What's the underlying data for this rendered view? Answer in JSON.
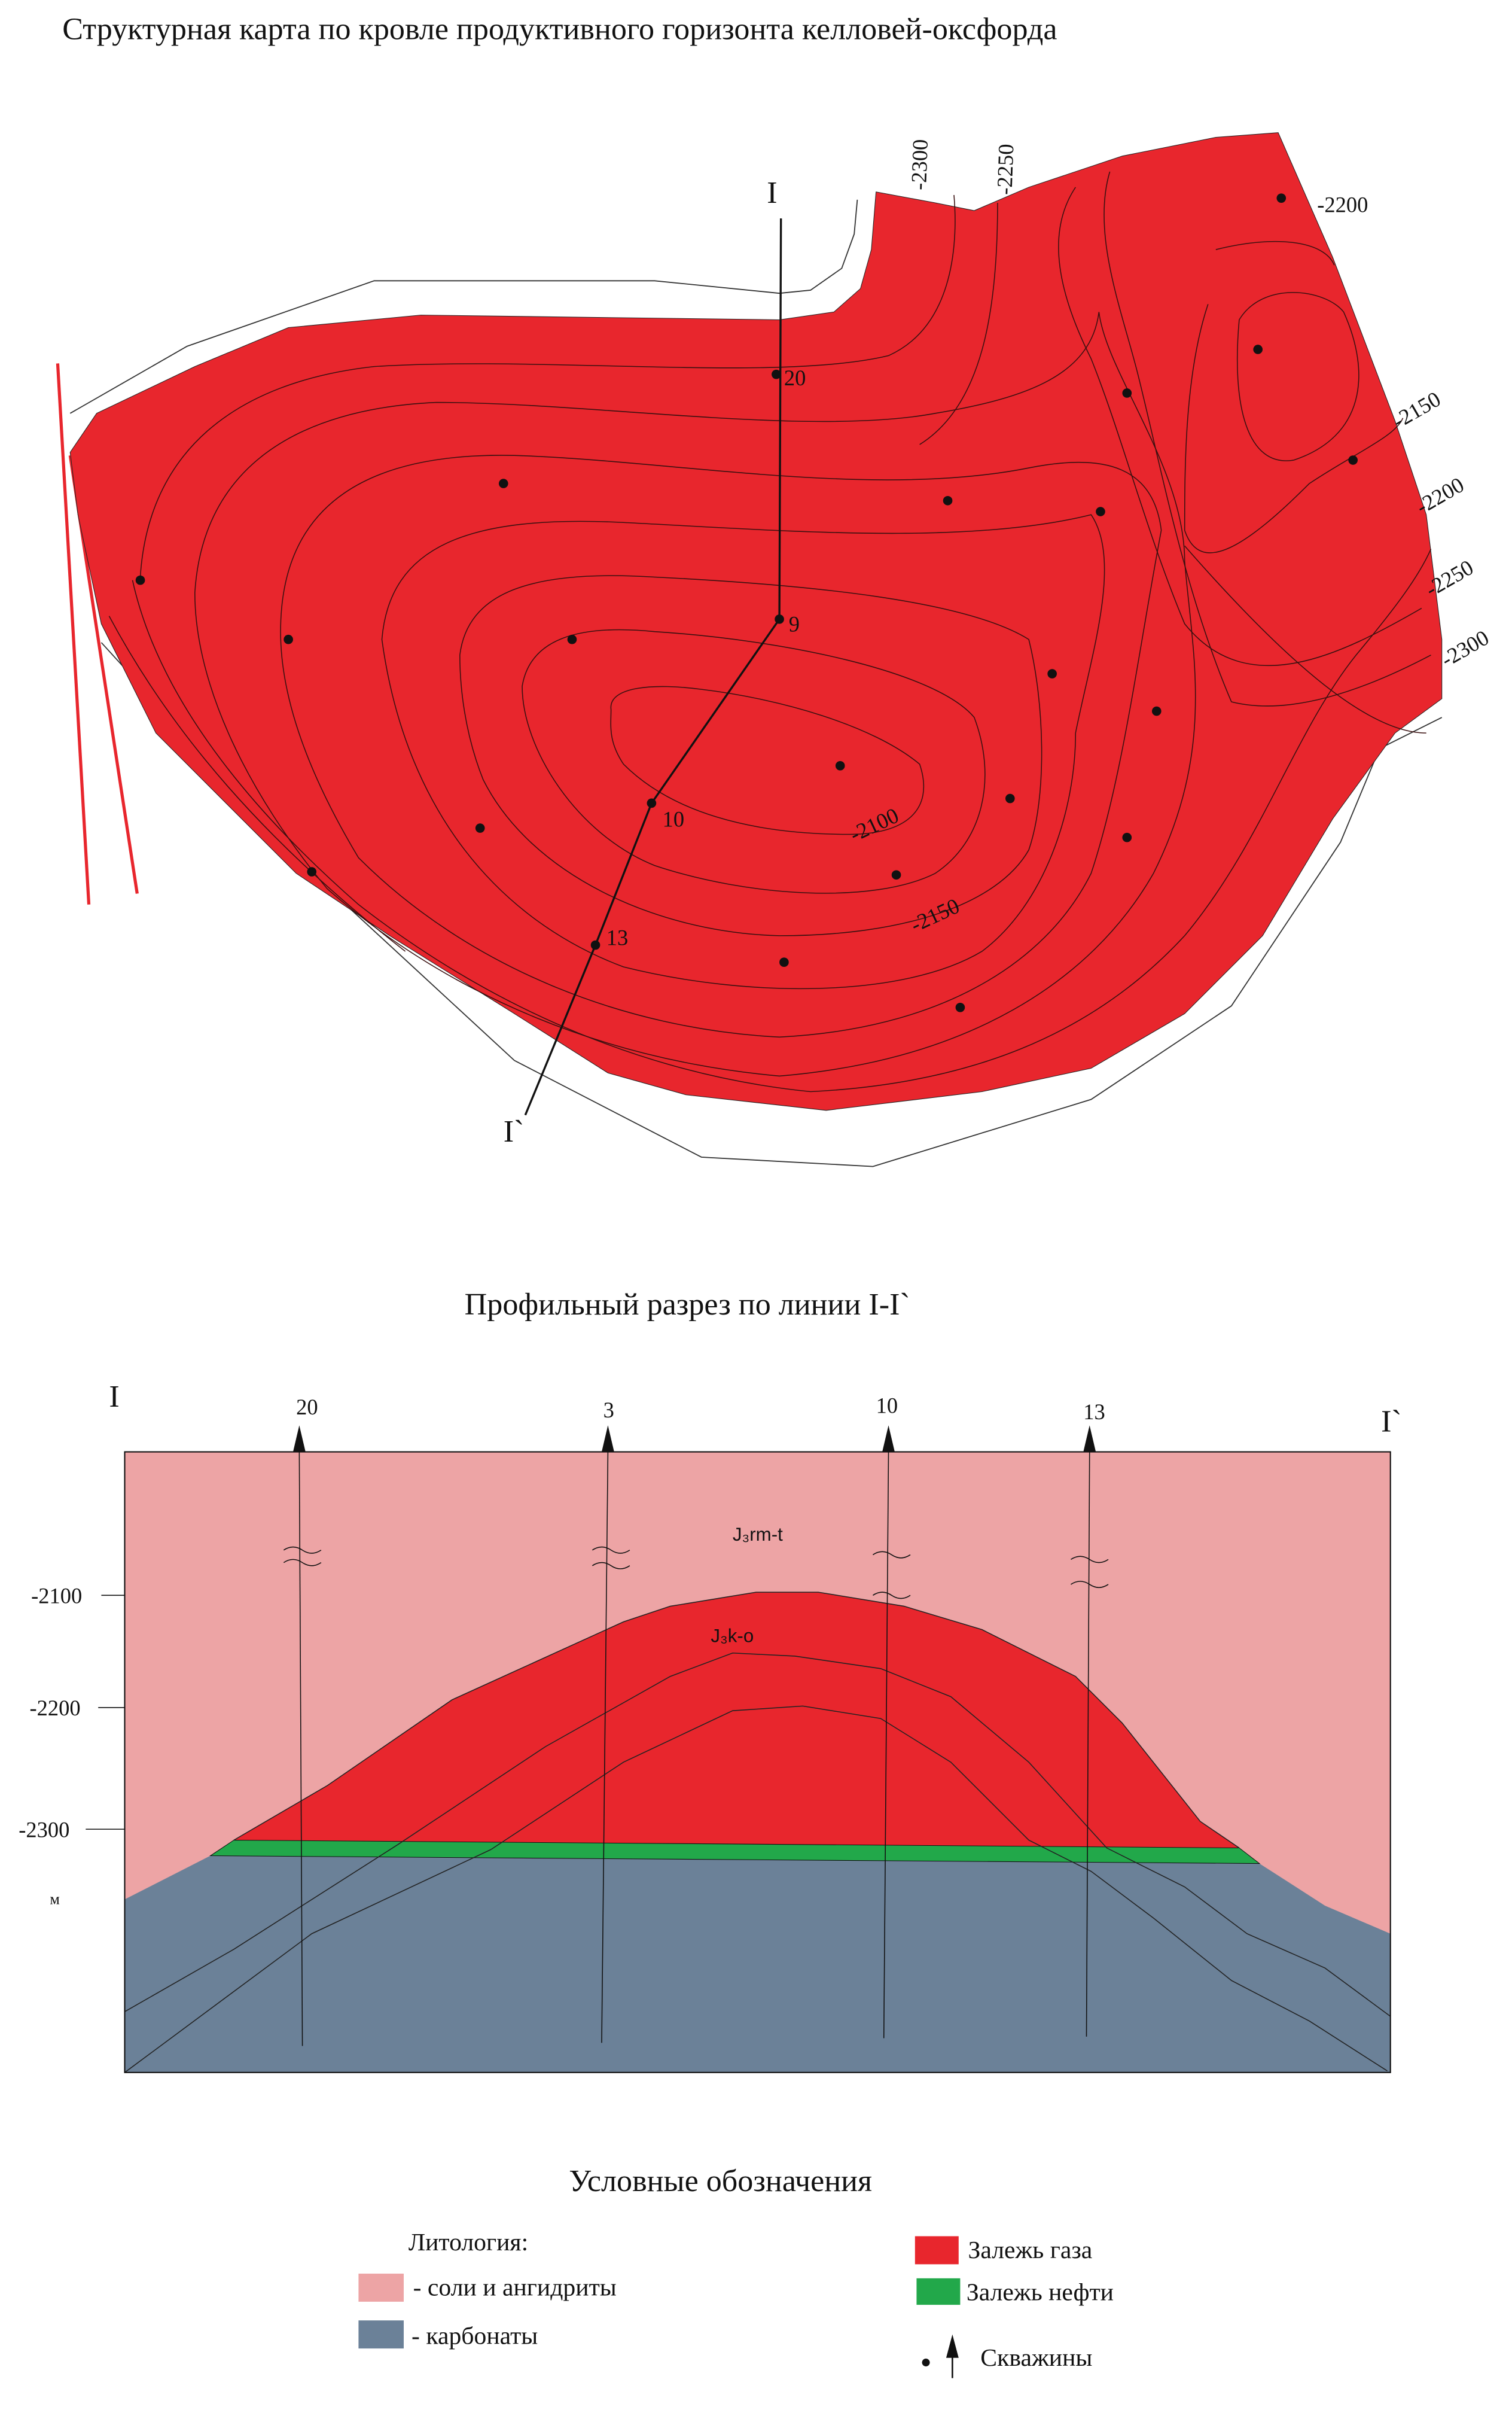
{
  "map": {
    "title": "Структурная карта по кровле продуктивного горизонта келловей-оксфорда",
    "line_start": "I",
    "line_end": "I`",
    "wells": [
      {
        "id": "20",
        "labeled": true
      },
      {
        "id": "9",
        "labeled": true
      },
      {
        "id": "10",
        "labeled": true
      },
      {
        "id": "13",
        "labeled": true
      }
    ],
    "contour_labels": [
      "-2300",
      "-2250",
      "-2200",
      "-2150",
      "-2200",
      "-2250",
      "-2300",
      "-2100",
      "-2150"
    ],
    "colors": {
      "gas": "#e8262d",
      "fault": "#e8262d"
    }
  },
  "section": {
    "title": "Профильный разрез по линии I-I`",
    "start": "I",
    "end": "I`",
    "wells": [
      "20",
      "3",
      "10",
      "13"
    ],
    "depth_labels": [
      "-2100",
      "-2200",
      "-2300"
    ],
    "unit": "м",
    "formation_upper": "J₃rm-t",
    "formation_lower": "J₃k-o",
    "colors": {
      "salt": "#eda4a5",
      "carbonate": "#6b8198",
      "gas": "#e8262d",
      "oil": "#22a84a"
    }
  },
  "legend": {
    "title": "Условные обозначения",
    "lithology_title": "Литология:",
    "salt": "- соли и ангидриты",
    "carbonate": "- карбонаты",
    "gas": "Залежь газа",
    "oil": "Залежь нефти",
    "wells": "Скважины"
  }
}
